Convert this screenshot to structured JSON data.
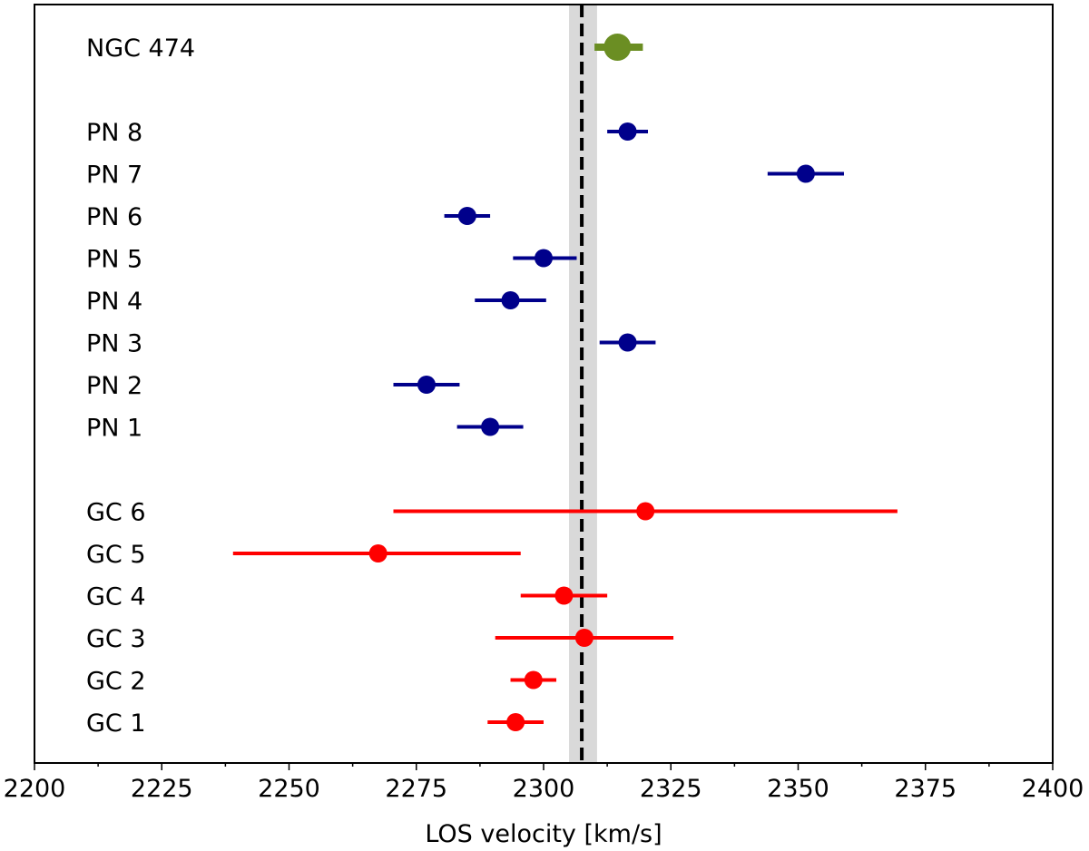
{
  "chart_data": {
    "type": "scatter",
    "title": "",
    "xlabel": "LOS velocity [km/s]",
    "ylabel": "",
    "xlim": [
      2200,
      2400
    ],
    "xticks": [
      2200,
      2225,
      2250,
      2275,
      2300,
      2325,
      2350,
      2375,
      2400
    ],
    "grid": false,
    "reference": {
      "value": 2307.5,
      "band": [
        2305,
        2310.5
      ],
      "band_color": "#d9d9d9",
      "line_color": "#000000",
      "line_style": "dashed"
    },
    "groups": [
      {
        "name": "NGC",
        "color": "#6b8e23",
        "points": [
          {
            "label": "NGC 474",
            "x": 2314.5,
            "err_low": 4.5,
            "err_high": 5.0
          }
        ]
      },
      {
        "name": "PN",
        "color": "#00008b",
        "points": [
          {
            "label": "PN 8",
            "x": 2316.5,
            "err_low": 4.0,
            "err_high": 4.0
          },
          {
            "label": "PN 7",
            "x": 2351.5,
            "err_low": 7.5,
            "err_high": 7.5
          },
          {
            "label": "PN 6",
            "x": 2285.0,
            "err_low": 4.5,
            "err_high": 4.5
          },
          {
            "label": "PN 5",
            "x": 2300.0,
            "err_low": 6.0,
            "err_high": 6.5
          },
          {
            "label": "PN 4",
            "x": 2293.5,
            "err_low": 7.0,
            "err_high": 7.0
          },
          {
            "label": "PN 3",
            "x": 2316.5,
            "err_low": 5.5,
            "err_high": 5.5
          },
          {
            "label": "PN 2",
            "x": 2277.0,
            "err_low": 6.5,
            "err_high": 6.5
          },
          {
            "label": "PN 1",
            "x": 2289.5,
            "err_low": 6.5,
            "err_high": 6.5
          }
        ]
      },
      {
        "name": "GC",
        "color": "#ff0000",
        "points": [
          {
            "label": "GC 6",
            "x": 2320.0,
            "err_low": 49.5,
            "err_high": 49.5
          },
          {
            "label": "GC 5",
            "x": 2267.5,
            "err_low": 28.5,
            "err_high": 28.0
          },
          {
            "label": "GC 4",
            "x": 2304.0,
            "err_low": 8.5,
            "err_high": 8.5
          },
          {
            "label": "GC 3",
            "x": 2308.0,
            "err_low": 17.5,
            "err_high": 17.5
          },
          {
            "label": "GC 2",
            "x": 2298.0,
            "err_low": 4.5,
            "err_high": 4.5
          },
          {
            "label": "GC 1",
            "x": 2294.5,
            "err_low": 5.5,
            "err_high": 5.5
          }
        ]
      }
    ]
  }
}
